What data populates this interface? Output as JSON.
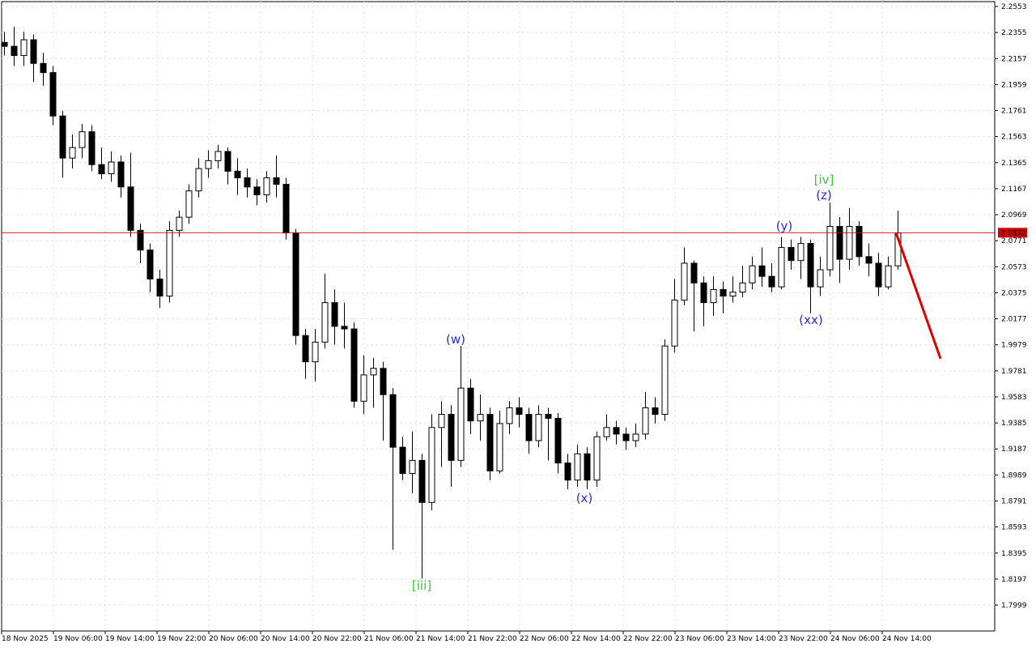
{
  "chart_data": {
    "type": "candlestick",
    "grid": true,
    "bull_color": "#ffffff",
    "bear_color": "#000000",
    "ylim": [
      1.7802,
      2.259
    ],
    "yticks": [
      2.2553,
      2.2355,
      2.2157,
      2.1959,
      2.1761,
      2.1563,
      2.1365,
      2.1167,
      2.0969,
      2.0771,
      2.0573,
      2.0375,
      2.0177,
      1.9979,
      1.9781,
      1.9583,
      1.9385,
      1.9187,
      1.8989,
      1.8791,
      1.8593,
      1.8395,
      1.8197,
      1.7999
    ],
    "x_labels": [
      "18 Nov 2025",
      "19 Nov 06:00",
      "19 Nov 14:00",
      "19 Nov 22:00",
      "20 Nov 06:00",
      "20 Nov 14:00",
      "20 Nov 22:00",
      "21 Nov 06:00",
      "21 Nov 14:00",
      "21 Nov 22:00",
      "22 Nov 06:00",
      "22 Nov 14:00",
      "22 Nov 22:00",
      "23 Nov 06:00",
      "23 Nov 14:00",
      "23 Nov 22:00",
      "24 Nov 06:00",
      "24 Nov 14:00"
    ],
    "open": [
      2.228,
      2.225,
      2.218,
      2.23,
      2.212,
      2.205,
      2.172,
      2.14,
      2.148,
      2.16,
      2.135,
      2.128,
      2.137,
      2.118,
      2.085,
      2.07,
      2.048,
      2.035,
      2.085,
      2.095,
      2.115,
      2.132,
      2.138,
      2.145,
      2.13,
      2.125,
      2.118,
      2.112,
      2.125,
      2.12,
      2.083,
      2.005,
      1.985,
      2.0,
      2.03,
      2.012,
      2.01,
      1.955,
      1.975,
      1.98,
      1.96,
      1.92,
      1.9,
      1.91,
      1.878,
      1.935,
      1.945,
      1.91,
      1.965,
      1.94,
      1.945,
      1.902,
      1.938,
      1.95,
      1.945,
      1.925,
      1.945,
      1.942,
      1.908,
      1.895,
      1.915,
      1.895,
      1.928,
      1.935,
      1.93,
      1.925,
      1.93,
      1.95,
      1.945,
      1.997,
      2.032,
      2.06,
      2.045,
      2.03,
      2.04,
      2.035,
      2.038,
      2.045,
      2.058,
      2.05,
      2.042,
      2.072,
      2.062,
      2.075,
      2.042,
      2.055,
      2.088,
      2.063,
      2.088,
      2.065,
      2.06,
      2.042,
      2.058
    ],
    "high": [
      2.236,
      2.24,
      2.236,
      2.234,
      2.22,
      2.21,
      2.176,
      2.158,
      2.166,
      2.165,
      2.148,
      2.145,
      2.142,
      2.144,
      2.09,
      2.075,
      2.055,
      2.092,
      2.1,
      2.12,
      2.14,
      2.146,
      2.15,
      2.148,
      2.14,
      2.132,
      2.124,
      2.13,
      2.142,
      2.125,
      2.086,
      2.01,
      2.01,
      2.052,
      2.04,
      2.03,
      2.015,
      1.99,
      1.988,
      1.985,
      1.965,
      1.928,
      1.932,
      1.915,
      1.945,
      1.955,
      1.952,
      1.997,
      1.972,
      1.96,
      1.95,
      1.948,
      1.955,
      1.958,
      1.95,
      1.952,
      1.95,
      1.946,
      1.915,
      1.922,
      1.92,
      1.932,
      1.945,
      1.94,
      1.935,
      1.938,
      1.962,
      1.958,
      2.002,
      2.048,
      2.072,
      2.062,
      2.05,
      2.05,
      2.046,
      2.05,
      2.058,
      2.065,
      2.072,
      2.06,
      2.08,
      2.078,
      2.08,
      2.078,
      2.065,
      2.106,
      2.095,
      2.102,
      2.092,
      2.075,
      2.068,
      2.065,
      2.1
    ],
    "low": [
      2.218,
      2.21,
      2.21,
      2.198,
      2.195,
      2.165,
      2.125,
      2.132,
      2.14,
      2.13,
      2.124,
      2.122,
      2.11,
      2.08,
      2.06,
      2.038,
      2.026,
      2.03,
      2.08,
      2.09,
      2.11,
      2.125,
      2.132,
      2.12,
      2.112,
      2.11,
      2.104,
      2.106,
      2.11,
      2.078,
      1.998,
      1.972,
      1.97,
      1.995,
      1.998,
      1.995,
      1.95,
      1.945,
      1.95,
      1.925,
      1.842,
      1.895,
      1.885,
      1.82,
      1.872,
      1.905,
      1.89,
      1.905,
      1.93,
      1.925,
      1.895,
      1.9,
      1.93,
      1.935,
      1.915,
      1.92,
      1.91,
      1.9,
      1.888,
      1.89,
      1.888,
      1.89,
      1.925,
      1.922,
      1.918,
      1.92,
      1.926,
      1.938,
      1.94,
      1.992,
      2.028,
      2.008,
      2.012,
      2.02,
      2.022,
      2.03,
      2.034,
      2.04,
      2.042,
      2.038,
      2.04,
      2.055,
      2.048,
      2.022,
      2.035,
      2.05,
      2.045,
      2.055,
      2.058,
      2.05,
      2.035,
      2.04,
      2.055
    ],
    "close": [
      2.225,
      2.218,
      2.23,
      2.212,
      2.205,
      2.172,
      2.14,
      2.148,
      2.16,
      2.135,
      2.128,
      2.137,
      2.118,
      2.085,
      2.07,
      2.048,
      2.035,
      2.085,
      2.095,
      2.115,
      2.132,
      2.138,
      2.145,
      2.13,
      2.125,
      2.118,
      2.112,
      2.125,
      2.12,
      2.083,
      2.005,
      1.985,
      2.0,
      2.03,
      2.012,
      2.01,
      1.955,
      1.975,
      1.98,
      1.96,
      1.92,
      1.9,
      1.91,
      1.878,
      1.935,
      1.945,
      1.91,
      1.965,
      1.94,
      1.945,
      1.902,
      1.938,
      1.95,
      1.945,
      1.925,
      1.945,
      1.942,
      1.908,
      1.895,
      1.915,
      1.895,
      1.928,
      1.935,
      1.93,
      1.925,
      1.93,
      1.95,
      1.945,
      1.997,
      2.032,
      2.06,
      2.045,
      2.03,
      2.04,
      2.035,
      2.038,
      2.045,
      2.058,
      2.05,
      2.042,
      2.072,
      2.062,
      2.075,
      2.042,
      2.055,
      2.088,
      2.063,
      2.088,
      2.065,
      2.06,
      2.042,
      2.058,
      2.083
    ],
    "current_price": {
      "value": 2.0832,
      "label": "2.0832",
      "color": "#d40000"
    },
    "forecast": {
      "color": "#e00000",
      "values": [
        2.0832,
        1.9874
      ]
    },
    "annotations": [
      {
        "text": "[iii]",
        "color": "#33cc33"
      },
      {
        "text": "(w)",
        "color": "#2b2bd6"
      },
      {
        "text": "(x)",
        "color": "#2b2bd6"
      },
      {
        "text": "(y)",
        "color": "#2b2bd6"
      },
      {
        "text": "(xx)",
        "color": "#2b2bd6"
      },
      {
        "text": "(z)",
        "color": "#2b2bd6"
      },
      {
        "text": "[iv]",
        "color": "#33cc33"
      }
    ]
  }
}
